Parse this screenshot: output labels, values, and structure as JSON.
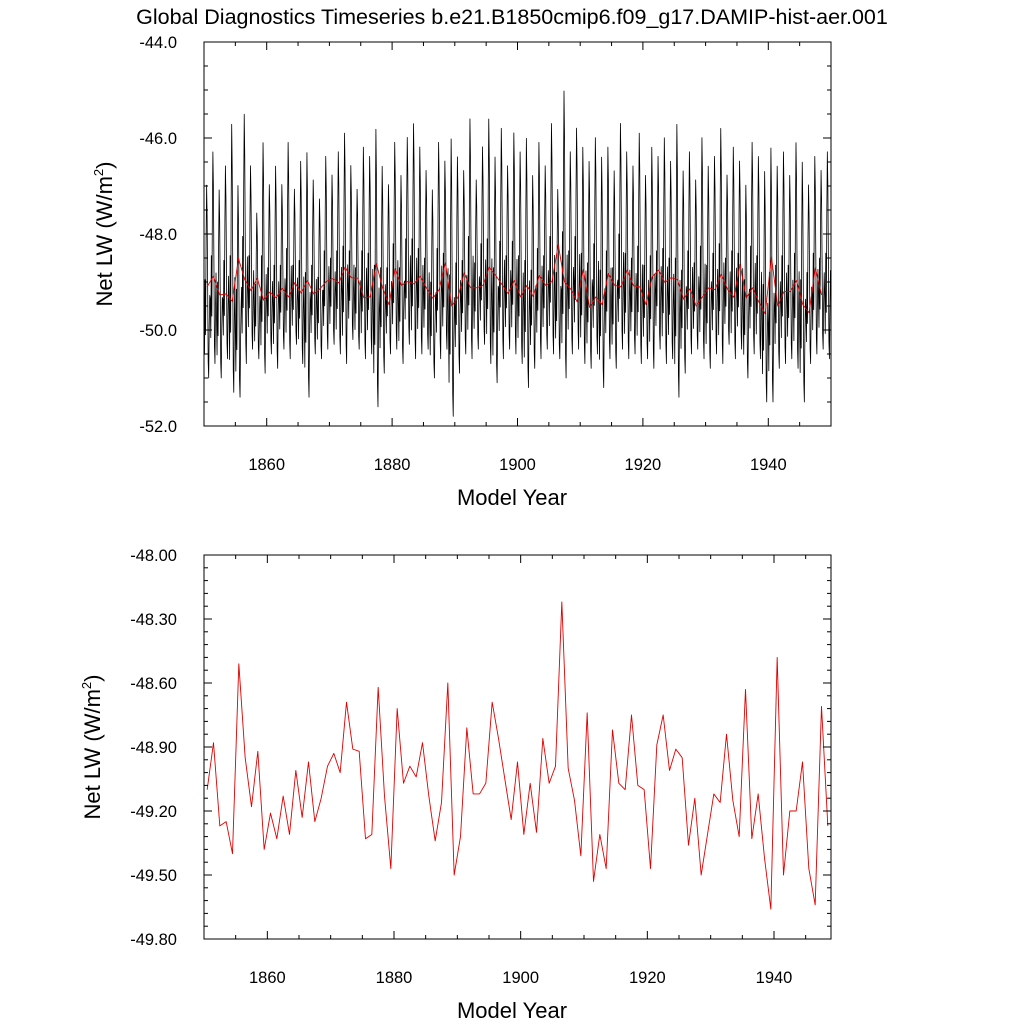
{
  "title": "Global Diagnostics Timeseries b.e21.B1850cmip6.f09_g17.DAMIP-hist-aer.001",
  "chart_data": [
    {
      "type": "line",
      "title": "",
      "xlabel": "Model Year",
      "ylabel": "Net LW (W/m2)",
      "ylabel_main": "Net LW (W/m",
      "ylabel_sup": "2",
      "ylabel_close": ")",
      "xlim": [
        1850,
        1950
      ],
      "ylim": [
        -52.0,
        -44.0
      ],
      "xticks": [
        "1860",
        "1880",
        "1900",
        "1920",
        "1940"
      ],
      "yticks": [
        "-44.0",
        "-46.0",
        "-48.0",
        "-50.0",
        "-52.0"
      ],
      "grid": false,
      "series": [
        {
          "color": "#000000",
          "kind": "monthly",
          "x_start": 1850.0,
          "x_step": 0.08333,
          "annual_max": [
            -46.9,
            -46.2,
            -47.0,
            -46.5,
            -45.6,
            -46.9,
            -45.4,
            -46.5,
            -47.5,
            -46.0,
            -46.9,
            -46.5,
            -46.9,
            -46.0,
            -47.0,
            -46.4,
            -46.2,
            -46.8,
            -47.2,
            -46.3,
            -46.7,
            -46.2,
            -45.8,
            -46.5,
            -47.0,
            -46.1,
            -46.3,
            -45.7,
            -46.5,
            -46.9,
            -46.0,
            -46.7,
            -45.9,
            -45.6,
            -46.1,
            -46.6,
            -47.0,
            -46.0,
            -46.4,
            -45.9,
            -46.3,
            -46.6,
            -45.5,
            -46.8,
            -46.1,
            -45.5,
            -46.3,
            -45.7,
            -46.5,
            -45.8,
            -46.2,
            -45.9,
            -46.7,
            -46.0,
            -46.5,
            -45.6,
            -47.0,
            -44.9,
            -46.2,
            -45.7,
            -46.1,
            -46.4,
            -45.9,
            -46.3,
            -46.1,
            -46.6,
            -45.6,
            -46.2,
            -46.5,
            -45.8,
            -46.7,
            -46.1,
            -46.3,
            -45.9,
            -46.4,
            -45.6,
            -46.6,
            -46.2,
            -46.8,
            -45.9,
            -46.5,
            -46.3,
            -45.7,
            -46.7,
            -46.1,
            -46.4,
            -46.9,
            -46.0,
            -46.3,
            -46.6,
            -46.1,
            -46.5,
            -46.2,
            -46.7,
            -46.0,
            -46.4,
            -46.9,
            -46.3,
            -46.6,
            -46.2
          ],
          "annual_min": [
            -51.0,
            -50.7,
            -51.0,
            -50.6,
            -51.3,
            -51.4,
            -50.7,
            -50.4,
            -50.6,
            -50.9,
            -50.5,
            -50.8,
            -50.4,
            -50.6,
            -50.3,
            -50.7,
            -51.4,
            -50.5,
            -50.6,
            -50.4,
            -50.3,
            -50.5,
            -50.7,
            -50.2,
            -50.4,
            -50.6,
            -50.5,
            -51.6,
            -50.9,
            -50.5,
            -50.4,
            -50.7,
            -50.3,
            -50.6,
            -50.5,
            -50.4,
            -51.0,
            -50.6,
            -50.4,
            -51.8,
            -50.9,
            -50.5,
            -50.6,
            -50.4,
            -50.3,
            -50.7,
            -51.1,
            -50.6,
            -50.4,
            -50.5,
            -50.7,
            -51.2,
            -50.8,
            -50.6,
            -50.4,
            -50.5,
            -50.6,
            -51.0,
            -50.5,
            -50.4,
            -50.7,
            -50.8,
            -50.5,
            -51.2,
            -50.6,
            -50.8,
            -50.4,
            -50.6,
            -50.5,
            -50.7,
            -50.6,
            -50.8,
            -50.4,
            -50.7,
            -50.6,
            -51.4,
            -50.9,
            -50.5,
            -50.4,
            -50.6,
            -50.8,
            -50.5,
            -50.7,
            -50.3,
            -50.6,
            -50.4,
            -51.0,
            -50.5,
            -50.6,
            -51.5,
            -51.5,
            -50.8,
            -50.7,
            -50.6,
            -50.8,
            -51.5,
            -50.7,
            -50.5,
            -50.4,
            -50.6
          ]
        },
        {
          "color": "#e00000",
          "kind": "annual",
          "x_start": 1850.5,
          "x_step": 1.0,
          "values": [
            -49.1,
            -48.88,
            -49.27,
            -49.25,
            -49.4,
            -48.51,
            -48.95,
            -49.18,
            -48.92,
            -49.38,
            -49.21,
            -49.33,
            -49.13,
            -49.31,
            -49.01,
            -49.23,
            -48.97,
            -49.25,
            -49.14,
            -48.99,
            -48.93,
            -49.02,
            -48.69,
            -48.91,
            -48.92,
            -49.33,
            -49.31,
            -48.62,
            -49.13,
            -49.47,
            -48.72,
            -49.07,
            -48.99,
            -49.04,
            -48.88,
            -49.13,
            -49.34,
            -49.16,
            -48.6,
            -49.5,
            -49.32,
            -48.81,
            -49.12,
            -49.12,
            -49.07,
            -48.69,
            -48.86,
            -49.05,
            -49.24,
            -48.97,
            -49.31,
            -49.07,
            -49.3,
            -48.86,
            -49.07,
            -48.99,
            -48.22,
            -49.0,
            -49.15,
            -49.41,
            -48.74,
            -49.53,
            -49.31,
            -49.47,
            -48.82,
            -49.07,
            -49.1,
            -48.75,
            -49.08,
            -49.1,
            -49.47,
            -48.89,
            -48.75,
            -49.01,
            -48.91,
            -48.95,
            -49.36,
            -49.14,
            -49.5,
            -49.31,
            -49.12,
            -49.16,
            -48.84,
            -49.15,
            -49.32,
            -48.63,
            -49.33,
            -49.12,
            -49.42,
            -49.66,
            -48.48,
            -49.5,
            -49.2,
            -49.2,
            -48.97,
            -49.47,
            -49.64,
            -48.71,
            -49.27
          ]
        }
      ]
    },
    {
      "type": "line",
      "title": "",
      "xlabel": "Model Year",
      "ylabel": "Net LW (W/m2)",
      "ylabel_main": "Net LW (W/m",
      "ylabel_sup": "2",
      "ylabel_close": ")",
      "xlim": [
        1850,
        1949
      ],
      "ylim": [
        -49.8,
        -48.0
      ],
      "xticks": [
        "1860",
        "1880",
        "1900",
        "1920",
        "1940"
      ],
      "yticks": [
        "-48.00",
        "-48.30",
        "-48.60",
        "-48.90",
        "-49.20",
        "-49.50",
        "-49.80"
      ],
      "grid": false,
      "series": [
        {
          "color": "#e00000",
          "kind": "annual",
          "x_start": 1850.5,
          "x_step": 1.0,
          "values": [
            -49.1,
            -48.88,
            -49.27,
            -49.25,
            -49.4,
            -48.51,
            -48.95,
            -49.18,
            -48.92,
            -49.38,
            -49.21,
            -49.33,
            -49.13,
            -49.31,
            -49.01,
            -49.23,
            -48.97,
            -49.25,
            -49.14,
            -48.99,
            -48.93,
            -49.02,
            -48.69,
            -48.91,
            -48.92,
            -49.33,
            -49.31,
            -48.62,
            -49.13,
            -49.47,
            -48.72,
            -49.07,
            -48.99,
            -49.04,
            -48.88,
            -49.13,
            -49.34,
            -49.16,
            -48.6,
            -49.5,
            -49.32,
            -48.81,
            -49.12,
            -49.12,
            -49.07,
            -48.69,
            -48.86,
            -49.05,
            -49.24,
            -48.97,
            -49.31,
            -49.07,
            -49.3,
            -48.86,
            -49.07,
            -48.99,
            -48.22,
            -49.0,
            -49.15,
            -49.41,
            -48.74,
            -49.53,
            -49.31,
            -49.47,
            -48.82,
            -49.07,
            -49.1,
            -48.75,
            -49.08,
            -49.1,
            -49.47,
            -48.89,
            -48.75,
            -49.01,
            -48.91,
            -48.95,
            -49.36,
            -49.14,
            -49.5,
            -49.31,
            -49.12,
            -49.16,
            -48.84,
            -49.15,
            -49.32,
            -48.63,
            -49.33,
            -49.12,
            -49.42,
            -49.66,
            -48.48,
            -49.5,
            -49.2,
            -49.2,
            -48.97,
            -49.47,
            -49.64,
            -48.71,
            -49.27
          ]
        }
      ]
    }
  ]
}
